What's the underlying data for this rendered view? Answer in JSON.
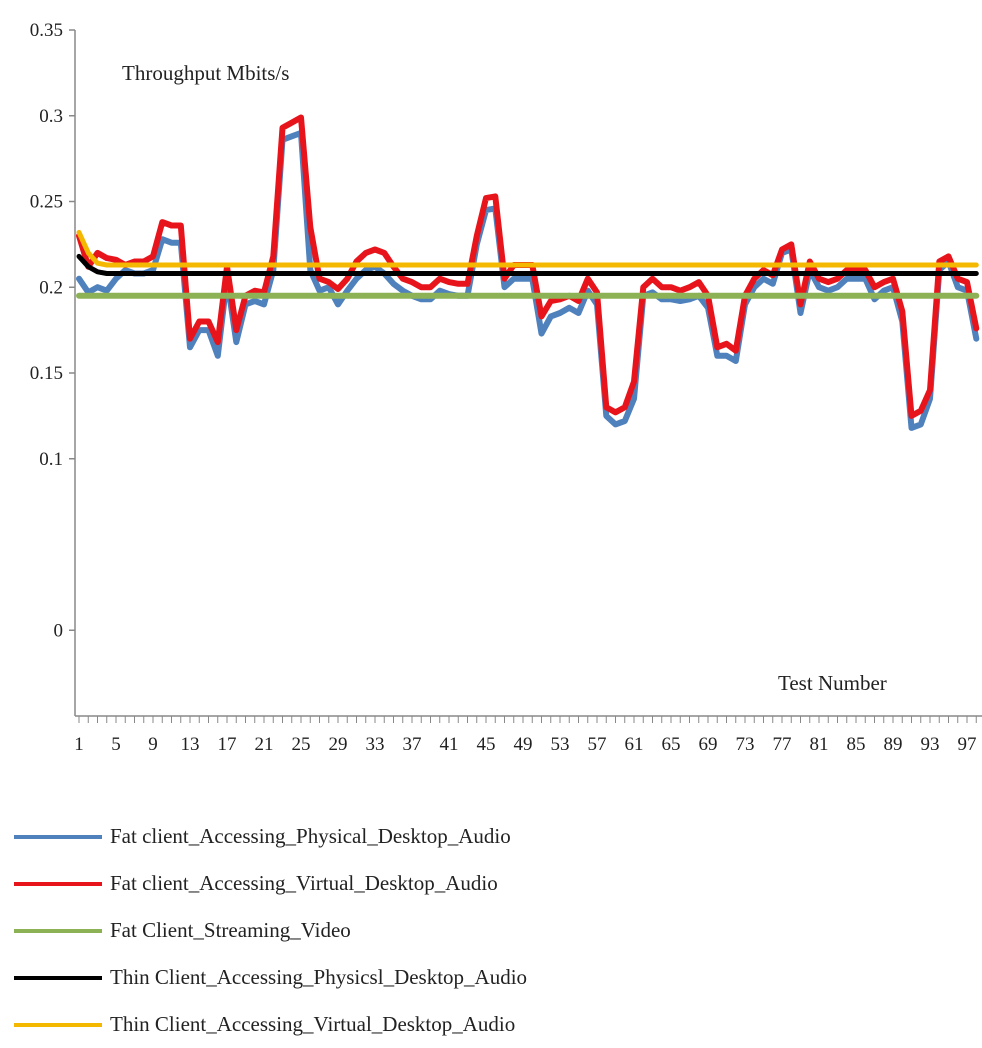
{
  "chart_data": {
    "type": "line",
    "title": "",
    "ylabel": "Throughput Mbits/s",
    "xlabel": "Test Number",
    "ylim": [
      -0.05,
      0.35
    ],
    "yticks": [
      {
        "value": 0.35,
        "label": "0.35"
      },
      {
        "value": 0.3,
        "label": "0.3"
      },
      {
        "value": 0.25,
        "label": "0.25"
      },
      {
        "value": 0.2,
        "label": "0.2"
      },
      {
        "value": 0.15,
        "label": "0.15"
      },
      {
        "value": 0.1,
        "label": "0.1"
      },
      {
        "value": 0.0,
        "label": "0"
      }
    ],
    "x_range": [
      1,
      99
    ],
    "x_tick_labels": [
      "1",
      "5",
      "9",
      "13",
      "17",
      "21",
      "25",
      "29",
      "33",
      "37",
      "41",
      "45",
      "49",
      "53",
      "57",
      "61",
      "65",
      "69",
      "73",
      "77",
      "81",
      "85",
      "89",
      "93",
      "97"
    ],
    "grid": false,
    "legend_position": "bottom",
    "series": [
      {
        "name": "Fat client_Accessing_Physical_Desktop_Audio",
        "color": "#4f81bd",
        "x": [
          1,
          2,
          3,
          4,
          5,
          6,
          7,
          8,
          9,
          10,
          11,
          12,
          13,
          14,
          15,
          16,
          17,
          18,
          19,
          20,
          21,
          22,
          23,
          24,
          25,
          26,
          27,
          28,
          29,
          30,
          31,
          32,
          33,
          34,
          35,
          36,
          37,
          38,
          39,
          40,
          41,
          42,
          43,
          44,
          45,
          46,
          47,
          48,
          49,
          50,
          51,
          52,
          53,
          54,
          55,
          56,
          57,
          58,
          59,
          60,
          61,
          62,
          63,
          64,
          65,
          66,
          67,
          68,
          69,
          70,
          71,
          72,
          73,
          74,
          75,
          76,
          77,
          78,
          79,
          80,
          81,
          82,
          83,
          84,
          85,
          86,
          87,
          88,
          89,
          90,
          91,
          92,
          93,
          94,
          95,
          96,
          97,
          98
        ],
        "y": [
          0.205,
          0.197,
          0.2,
          0.198,
          0.205,
          0.21,
          0.208,
          0.208,
          0.21,
          0.228,
          0.226,
          0.226,
          0.165,
          0.175,
          0.175,
          0.16,
          0.205,
          0.168,
          0.19,
          0.192,
          0.19,
          0.21,
          0.286,
          0.288,
          0.29,
          0.21,
          0.198,
          0.2,
          0.19,
          0.198,
          0.205,
          0.21,
          0.212,
          0.208,
          0.202,
          0.198,
          0.195,
          0.193,
          0.193,
          0.198,
          0.196,
          0.195,
          0.195,
          0.225,
          0.245,
          0.246,
          0.2,
          0.205,
          0.205,
          0.205,
          0.173,
          0.183,
          0.185,
          0.188,
          0.185,
          0.198,
          0.19,
          0.125,
          0.12,
          0.122,
          0.135,
          0.195,
          0.197,
          0.193,
          0.193,
          0.192,
          0.193,
          0.195,
          0.188,
          0.16,
          0.16,
          0.157,
          0.19,
          0.2,
          0.205,
          0.202,
          0.22,
          0.222,
          0.185,
          0.21,
          0.2,
          0.198,
          0.2,
          0.205,
          0.205,
          0.205,
          0.193,
          0.198,
          0.2,
          0.18,
          0.118,
          0.12,
          0.135,
          0.21,
          0.215,
          0.2,
          0.198,
          0.17
        ]
      },
      {
        "name": "Fat client_Accessing_Virtual_Desktop_Audio",
        "color": "#e8141b",
        "x": [
          1,
          2,
          3,
          4,
          5,
          6,
          7,
          8,
          9,
          10,
          11,
          12,
          13,
          14,
          15,
          16,
          17,
          18,
          19,
          20,
          21,
          22,
          23,
          24,
          25,
          26,
          27,
          28,
          29,
          30,
          31,
          32,
          33,
          34,
          35,
          36,
          37,
          38,
          39,
          40,
          41,
          42,
          43,
          44,
          45,
          46,
          47,
          48,
          49,
          50,
          51,
          52,
          53,
          54,
          55,
          56,
          57,
          58,
          59,
          60,
          61,
          62,
          63,
          64,
          65,
          66,
          67,
          68,
          69,
          70,
          71,
          72,
          73,
          74,
          75,
          76,
          77,
          78,
          79,
          80,
          81,
          82,
          83,
          84,
          85,
          86,
          87,
          88,
          89,
          90,
          91,
          92,
          93,
          94,
          95,
          96,
          97,
          98
        ],
        "y": [
          0.23,
          0.212,
          0.22,
          0.217,
          0.216,
          0.213,
          0.215,
          0.215,
          0.218,
          0.238,
          0.236,
          0.236,
          0.17,
          0.18,
          0.18,
          0.168,
          0.212,
          0.175,
          0.195,
          0.198,
          0.197,
          0.218,
          0.293,
          0.296,
          0.299,
          0.235,
          0.205,
          0.203,
          0.199,
          0.205,
          0.215,
          0.22,
          0.222,
          0.22,
          0.212,
          0.205,
          0.203,
          0.2,
          0.2,
          0.205,
          0.203,
          0.202,
          0.202,
          0.23,
          0.252,
          0.253,
          0.205,
          0.213,
          0.213,
          0.213,
          0.183,
          0.192,
          0.193,
          0.195,
          0.192,
          0.205,
          0.197,
          0.13,
          0.127,
          0.13,
          0.145,
          0.2,
          0.205,
          0.2,
          0.2,
          0.198,
          0.2,
          0.203,
          0.195,
          0.165,
          0.167,
          0.163,
          0.195,
          0.205,
          0.21,
          0.207,
          0.222,
          0.225,
          0.19,
          0.215,
          0.205,
          0.203,
          0.205,
          0.21,
          0.21,
          0.21,
          0.2,
          0.203,
          0.205,
          0.186,
          0.125,
          0.128,
          0.14,
          0.215,
          0.218,
          0.205,
          0.203,
          0.176
        ]
      },
      {
        "name": "Fat Client_Streaming_Video",
        "color": "#8db256",
        "x": [
          1,
          98
        ],
        "y": [
          0.195,
          0.195
        ]
      },
      {
        "name": "Thin Client_Accessing_Physicsl_Desktop_Audio",
        "color": "#000000",
        "x": [
          1,
          2,
          3,
          4,
          5,
          98
        ],
        "y": [
          0.218,
          0.212,
          0.209,
          0.208,
          0.208,
          0.208
        ]
      },
      {
        "name": "Thin Client_Accessing_Virtual_Desktop_Audio",
        "color": "#f5b800",
        "x": [
          1,
          2,
          3,
          4,
          5,
          98
        ],
        "y": [
          0.232,
          0.22,
          0.214,
          0.213,
          0.213,
          0.213
        ]
      }
    ]
  }
}
